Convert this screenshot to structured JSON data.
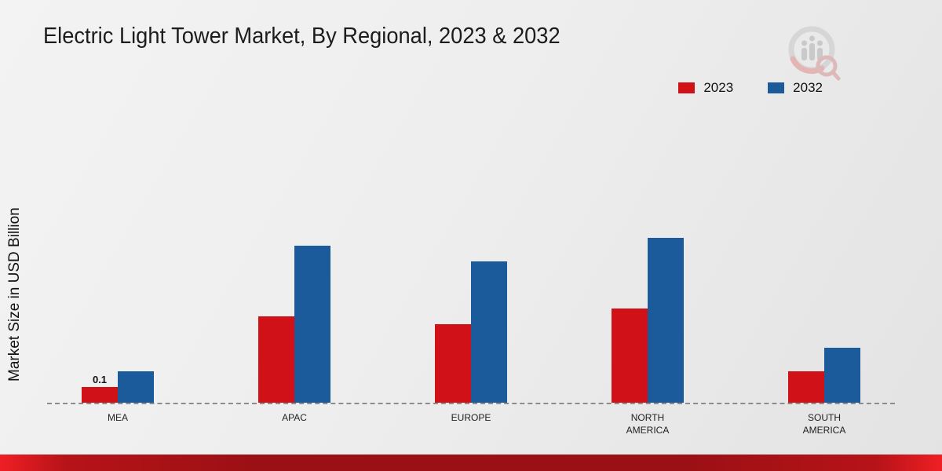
{
  "header": {
    "title": "Electric Light Tower Market, By Regional, 2023 & 2032"
  },
  "colors": {
    "series_2023": "#d01117",
    "series_2032": "#1b5a9b",
    "footer_red": "#9a1014",
    "baseline": "#8c8c8c"
  },
  "chart_data": {
    "type": "bar",
    "title": "Electric Light Tower Market, By Regional, 2023 & 2032",
    "ylabel": "Market Size in USD Billion",
    "xlabel": "",
    "categories": [
      "MEA",
      "APAC",
      "EUROPE",
      "NORTH AMERICA",
      "SOUTH AMERICA"
    ],
    "series": [
      {
        "name": "2023",
        "color": "#d01117",
        "values": [
          0.1,
          0.55,
          0.5,
          0.6,
          0.2
        ]
      },
      {
        "name": "2032",
        "color": "#1b5a9b",
        "values": [
          0.2,
          1.0,
          0.9,
          1.05,
          0.35
        ]
      }
    ],
    "annotations": [
      {
        "series": "2023",
        "category": "MEA",
        "text": "0.1"
      }
    ],
    "ylim": [
      0,
      1.8
    ],
    "grid": false,
    "legend_position": "top-right",
    "baseline_style": "dashed"
  }
}
